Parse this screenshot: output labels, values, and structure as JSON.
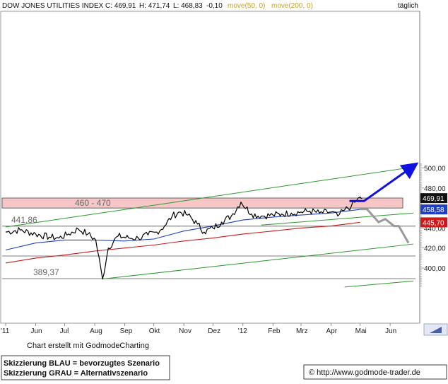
{
  "header": {
    "title": "DOW JONES UTILITIES INDEX",
    "close_label": "C: 469,91",
    "high_label": "H: 471,74",
    "low_label": "L: 468,83",
    "change_label": "-0,10",
    "ma50_label": "move(50, 0)",
    "ma200_label": "move(200, 0)",
    "interval": "täglich"
  },
  "footer": {
    "credit": "Chart erstellt mit GodmodeCharting",
    "legend_blue": "Skizzierung BLAU = bevorzugtes Szenario",
    "legend_gray": "Skizzierung GRAU = Alternativszenario",
    "copyright": "© http://www.godmode-trader.de"
  },
  "colors": {
    "price": "#000000",
    "ma50": "#1f3fbf",
    "ma200": "#cc1a1a",
    "channel": "#2a9a2a",
    "zone": "#f7c6c6",
    "scenario_blue": "#1010e0",
    "scenario_gray": "#9a9a9a",
    "last_price_box": "#111111",
    "ma50_box": "#1f3fbf",
    "ma200_box": "#cc1a1a"
  },
  "chart_data": {
    "type": "line",
    "title": "DOW JONES UTILITIES INDEX",
    "interval": "täglich",
    "x_tick_labels": [
      "'11",
      "Jun",
      "Jul",
      "Aug",
      "Sep",
      "Okt",
      "Nov",
      "Dez",
      "'12",
      "Feb",
      "Mrz",
      "Apr",
      "Mai",
      "Jun"
    ],
    "y_tick_labels": [
      "400,00",
      "420,00",
      "440,00",
      "460,00",
      "480,00",
      "500,00"
    ],
    "ylim": [
      380,
      505
    ],
    "last_values": {
      "close": "469,91",
      "ma50": "458,58",
      "ma200": "445,70"
    },
    "price_path": {
      "x": [
        "2011-05-01",
        "2011-05-16",
        "2011-06-01",
        "2011-06-15",
        "2011-06-25",
        "2011-07-05",
        "2011-07-15",
        "2011-07-25",
        "2011-08-02",
        "2011-08-09",
        "2011-08-15",
        "2011-08-25",
        "2011-09-05",
        "2011-09-15",
        "2011-09-25",
        "2011-10-04",
        "2011-10-12",
        "2011-10-20",
        "2011-10-28",
        "2011-11-05",
        "2011-11-15",
        "2011-11-22",
        "2011-12-01",
        "2011-12-10",
        "2011-12-20",
        "2011-12-30",
        "2012-01-10",
        "2012-01-20",
        "2012-02-01",
        "2012-02-10",
        "2012-02-20",
        "2012-03-01",
        "2012-03-10",
        "2012-03-20",
        "2012-04-01",
        "2012-04-08",
        "2012-04-15",
        "2012-04-22",
        "2012-04-27",
        "2012-05-01",
        "2012-05-03"
      ],
      "y": [
        436,
        438,
        434,
        431,
        430,
        434,
        439,
        434,
        428,
        389,
        420,
        432,
        430,
        430,
        433,
        436,
        442,
        452,
        456,
        453,
        444,
        436,
        440,
        446,
        452,
        466,
        454,
        452,
        453,
        454,
        455,
        456,
        457,
        455,
        456,
        452,
        458,
        462,
        467,
        471,
        469.9
      ]
    },
    "series": [
      {
        "name": "move(50, 0)",
        "x": [
          "2011-05-01",
          "2011-06-01",
          "2011-07-01",
          "2011-08-01",
          "2011-09-01",
          "2011-10-01",
          "2011-11-01",
          "2011-12-01",
          "2012-01-01",
          "2012-02-01",
          "2012-03-01",
          "2012-04-01",
          "2012-05-01"
        ],
        "values": [
          418,
          425,
          428,
          428,
          427,
          429,
          437,
          442,
          448,
          451,
          453,
          455,
          458.6
        ]
      },
      {
        "name": "move(200, 0)",
        "x": [
          "2011-05-01",
          "2011-06-01",
          "2011-07-01",
          "2011-08-01",
          "2011-09-01",
          "2011-10-01",
          "2011-11-01",
          "2011-12-01",
          "2012-01-01",
          "2012-02-01",
          "2012-03-01",
          "2012-04-01",
          "2012-05-01"
        ],
        "values": [
          405,
          410,
          413,
          417,
          420,
          423,
          427,
          430,
          434,
          437,
          440,
          442,
          445.7
        ]
      }
    ],
    "resistance_zone": {
      "low": 460,
      "high": 470,
      "label": "460 - 470"
    },
    "horizontal_levels": [
      {
        "value": 441.86,
        "label": "441,86"
      },
      {
        "value": 389.37,
        "label": "389,37"
      },
      {
        "value": 412,
        "label": ""
      }
    ],
    "channel_lines": [
      {
        "x": [
          "2011-05-01",
          "2012-06-25"
        ],
        "y": [
          441,
          501
        ]
      },
      {
        "x": [
          "2011-08-09",
          "2012-06-25"
        ],
        "y": [
          389,
          424
        ]
      },
      {
        "x": [
          "2012-01-20",
          "2012-06-25"
        ],
        "y": [
          443,
          455
        ]
      },
      {
        "x": [
          "2012-04-15",
          "2012-06-25"
        ],
        "y": [
          381,
          387
        ]
      }
    ],
    "scenario_blue": {
      "x": [
        "2012-04-20",
        "2012-05-05",
        "2012-06-25"
      ],
      "y": [
        467,
        467,
        502
      ]
    },
    "scenario_gray": {
      "x": [
        "2012-05-01",
        "2012-05-08",
        "2012-05-20",
        "2012-05-27",
        "2012-06-05",
        "2012-06-10",
        "2012-06-20"
      ],
      "y": [
        459,
        459,
        446,
        449,
        442,
        442,
        425
      ]
    }
  }
}
